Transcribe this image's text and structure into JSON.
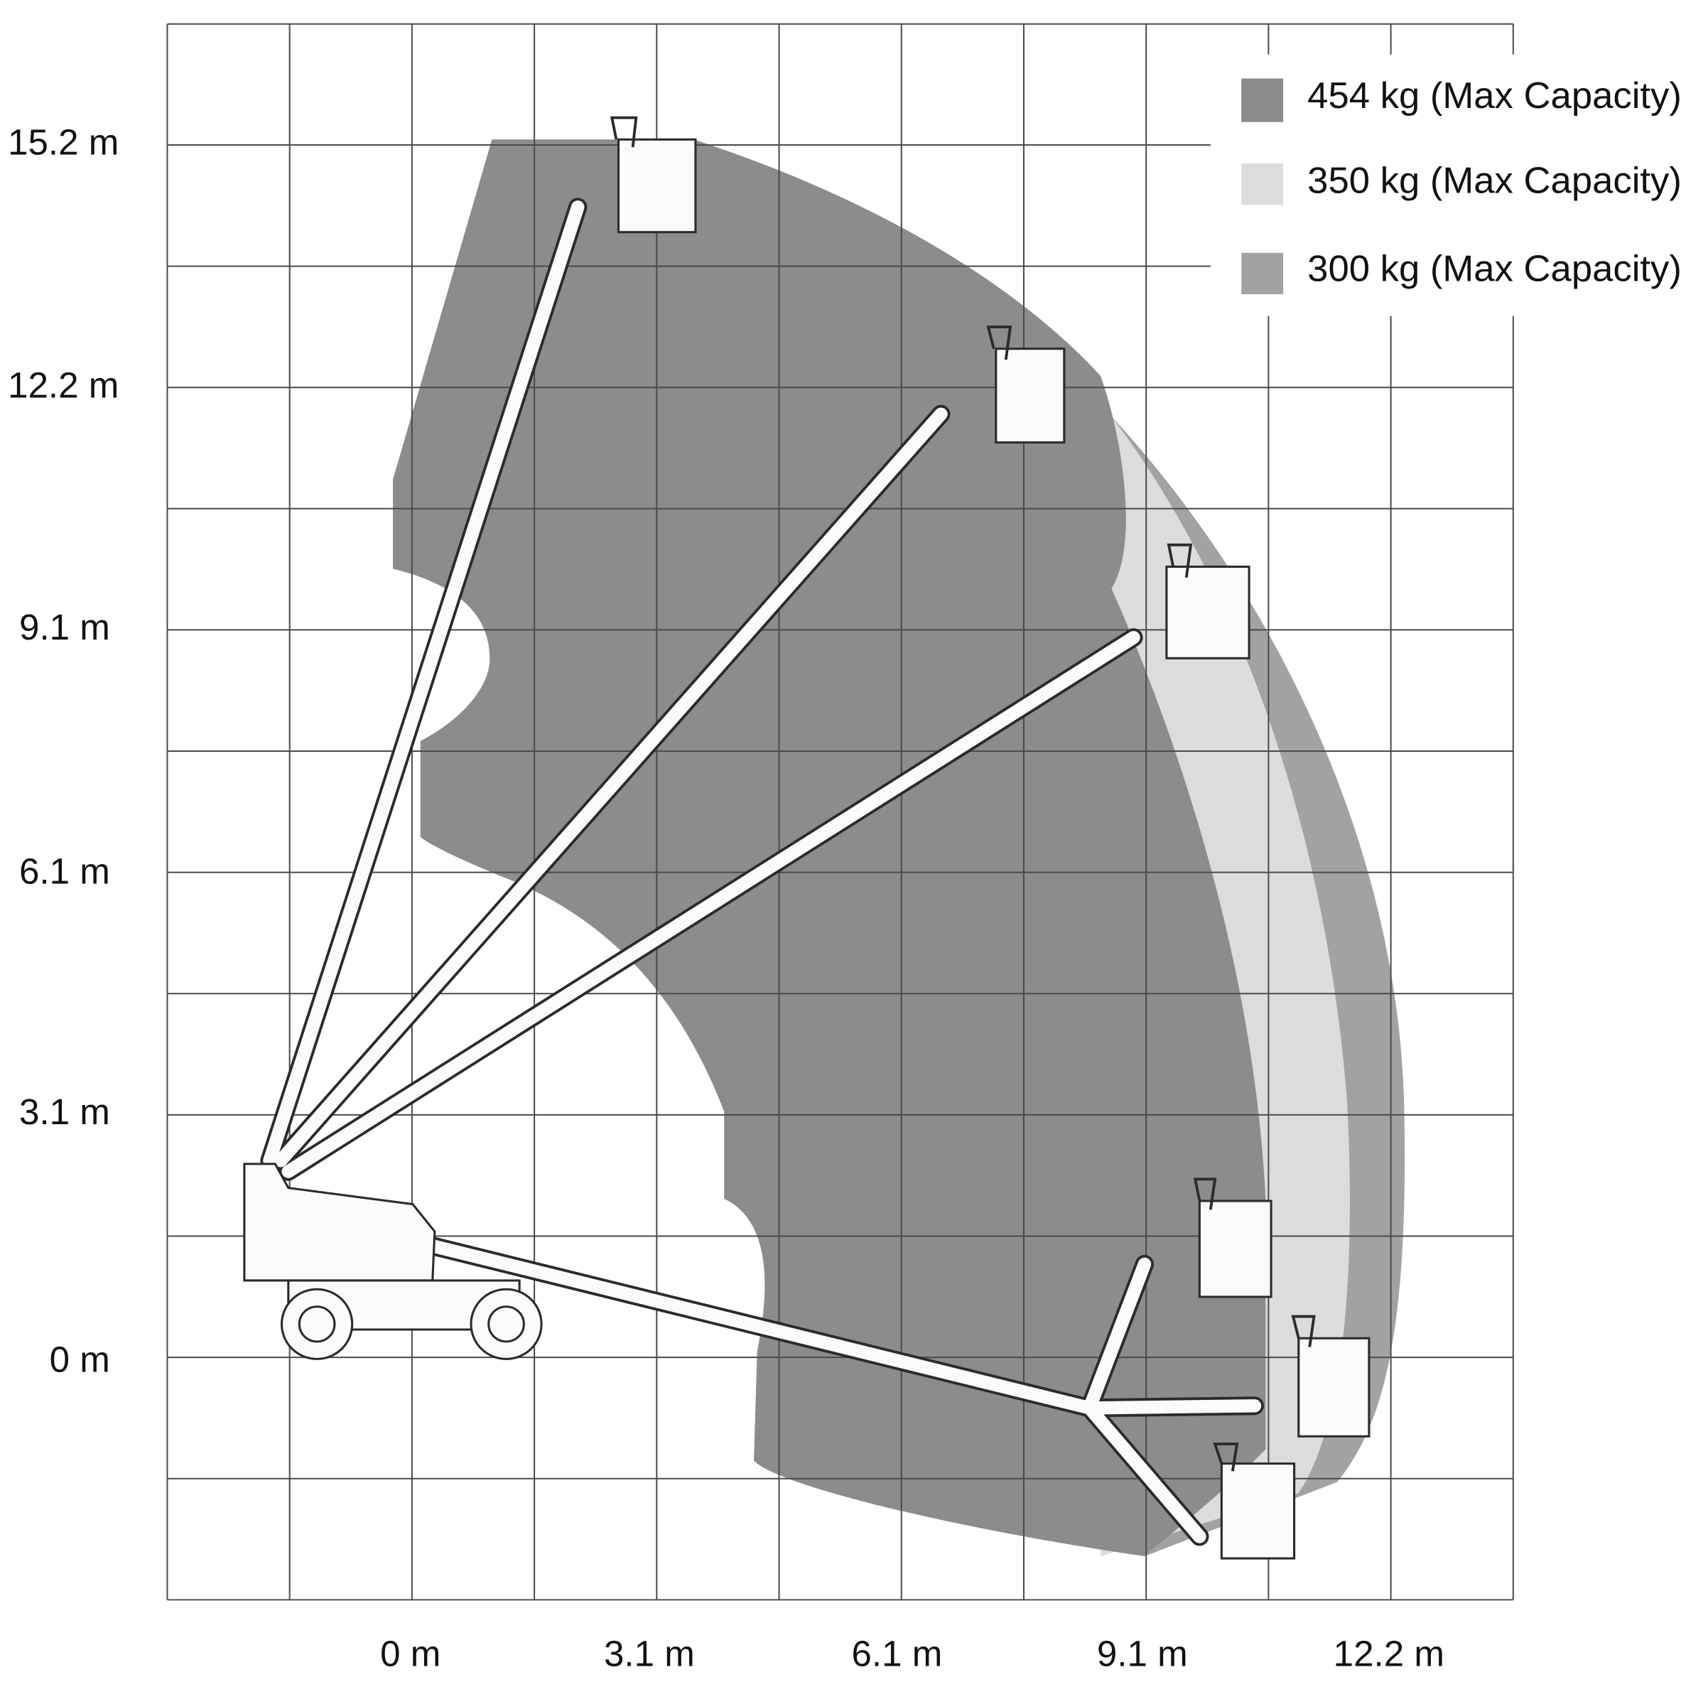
{
  "y_axis": {
    "labels": [
      "15.2 m",
      "12.2 m",
      "9.1 m",
      "6.1 m",
      "3.1 m",
      "0 m"
    ]
  },
  "x_axis": {
    "labels": [
      "0 m",
      "3.1 m",
      "6.1 m",
      "9.1 m",
      "12.2 m"
    ]
  },
  "legend": [
    {
      "label": "454 kg (Max Capacity)"
    },
    {
      "label": "350 kg (Max Capacity)"
    },
    {
      "label": "300 kg (Max Capacity)"
    }
  ]
}
